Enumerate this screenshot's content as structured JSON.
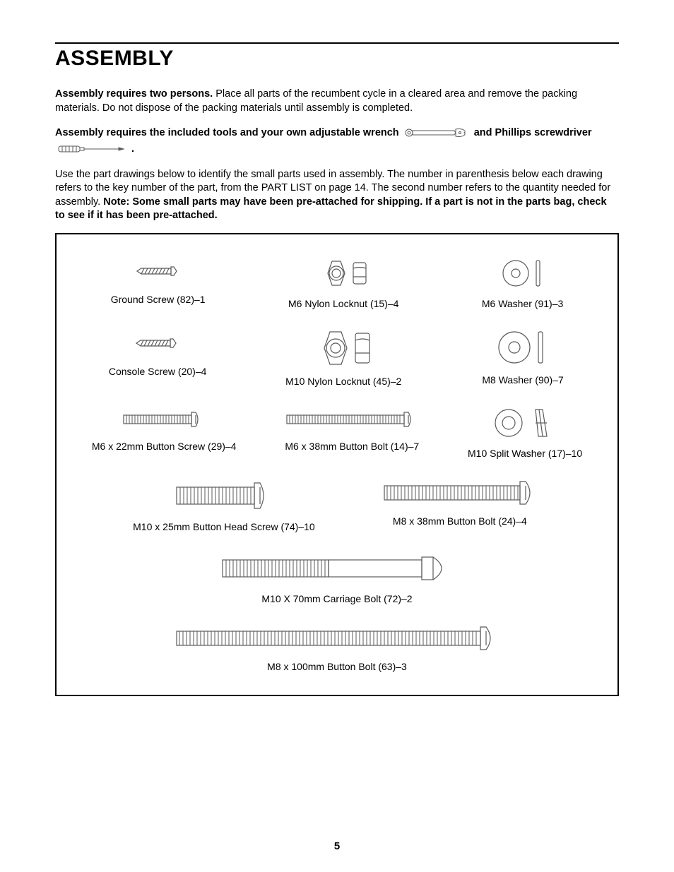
{
  "title": "ASSEMBLY",
  "intro": {
    "lead": "Assembly requires two persons.",
    "rest": " Place all parts of the recumbent cycle in a cleared area and remove the packing materials. Do not dispose of the packing materials until assembly is completed."
  },
  "tools": {
    "part1": "Assembly requires the included tools and your own adjustable wrench ",
    "part2": " and Phillips screwdriver ",
    "part3": " ."
  },
  "explain": {
    "plain": "Use the part drawings below to identify the small parts used in assembly. The number in parenthesis below each drawing refers to the key number of the part, from the PART LIST on page 14. The second number refers to the quantity needed for assembly. ",
    "bold": "Note: Some small parts may have been pre-attached for shipping. If a part is not in the parts bag, check to see if it has been pre-attached."
  },
  "parts": {
    "r1c1": "Ground Screw (82)–1",
    "r1c2": "M6 Nylon Locknut (15)–4",
    "r1c3": "M6 Washer (91)–3",
    "r2c1": "Console Screw (20)–4",
    "r2c2": "M10 Nylon Locknut (45)–2",
    "r2c3": "M8 Washer (90)–7",
    "r3c1": "M6 x 22mm Button Screw (29)–4",
    "r3c2": "M6 x 38mm Button Bolt (14)–7",
    "r3c3": "M10 Split Washer (17)–10",
    "r4c1": "M10 x 25mm Button Head Screw (74)–10",
    "r4c2": "M8 x 38mm Button Bolt (24)–4",
    "r5c1": "M10 X 70mm Carriage Bolt (72)–2",
    "r6c1": "M8 x 100mm Button Bolt (63)–3"
  },
  "pagenum": "5",
  "style": {
    "stroke": "#5a5a5a",
    "stroke_width": 1.2,
    "font_family": "Arial, Helvetica, sans-serif",
    "title_fontsize": 30,
    "body_fontsize": 14.5,
    "label_fontsize": 14
  }
}
